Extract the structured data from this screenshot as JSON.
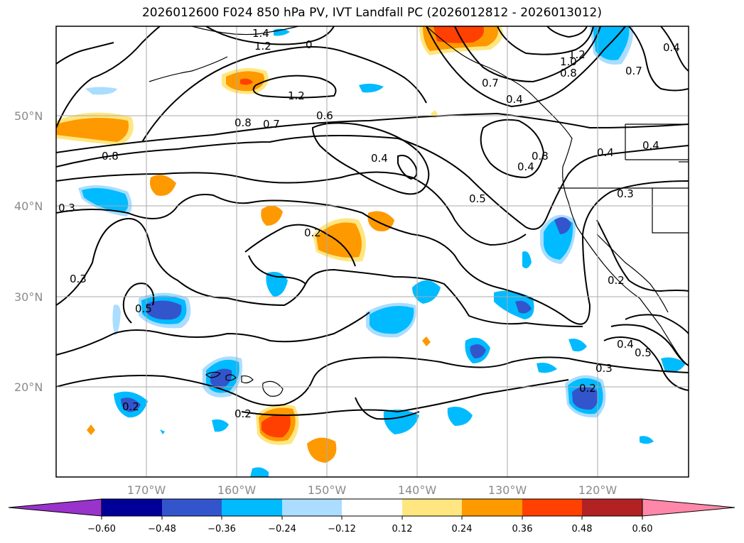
{
  "title": "2026012600 F024 850 hPa PV, IVT Landfall PC (2026012812 - 2026013012)",
  "map": {
    "lat_labels": [
      "50°N",
      "40°N",
      "30°N",
      "20°N"
    ],
    "lon_labels": [
      "170°W",
      "160°W",
      "150°W",
      "140°W",
      "130°W",
      "120°W"
    ],
    "contour_labels": [
      "1.4",
      "1.2",
      "0",
      "1.2",
      "0.8",
      "0.7",
      "0.6",
      "0.4",
      "0.5",
      "0.8",
      "0.3",
      "0.2",
      "0.3",
      "0.5",
      "0.2",
      "0.2",
      "0.4",
      "0.8",
      "0.4",
      "0.3",
      "0.2",
      "0.4",
      "0.5",
      "0.3",
      "0.2",
      "1.2",
      "1.0",
      "0.8",
      "0.7",
      "0.4",
      "0.4",
      "0.7",
      "0.4"
    ]
  },
  "colorbar": {
    "ticks": [
      "−0.60",
      "−0.48",
      "−0.36",
      "−0.24",
      "−0.12",
      "0.12",
      "0.24",
      "0.36",
      "0.48",
      "0.60"
    ],
    "colors": {
      "lt_neg060": "#9933cc",
      "neg060_neg048": "#000099",
      "neg048_neg036": "#3355cc",
      "neg036_neg024": "#00bbff",
      "neg024_neg012": "#aaddff",
      "neg012_012": "#ffffff",
      "p012_024": "#ffe680",
      "p024_036": "#ff9900",
      "p036_048": "#ff4000",
      "p048_060": "#b22222",
      "gt_060": "#ff88aa"
    }
  }
}
